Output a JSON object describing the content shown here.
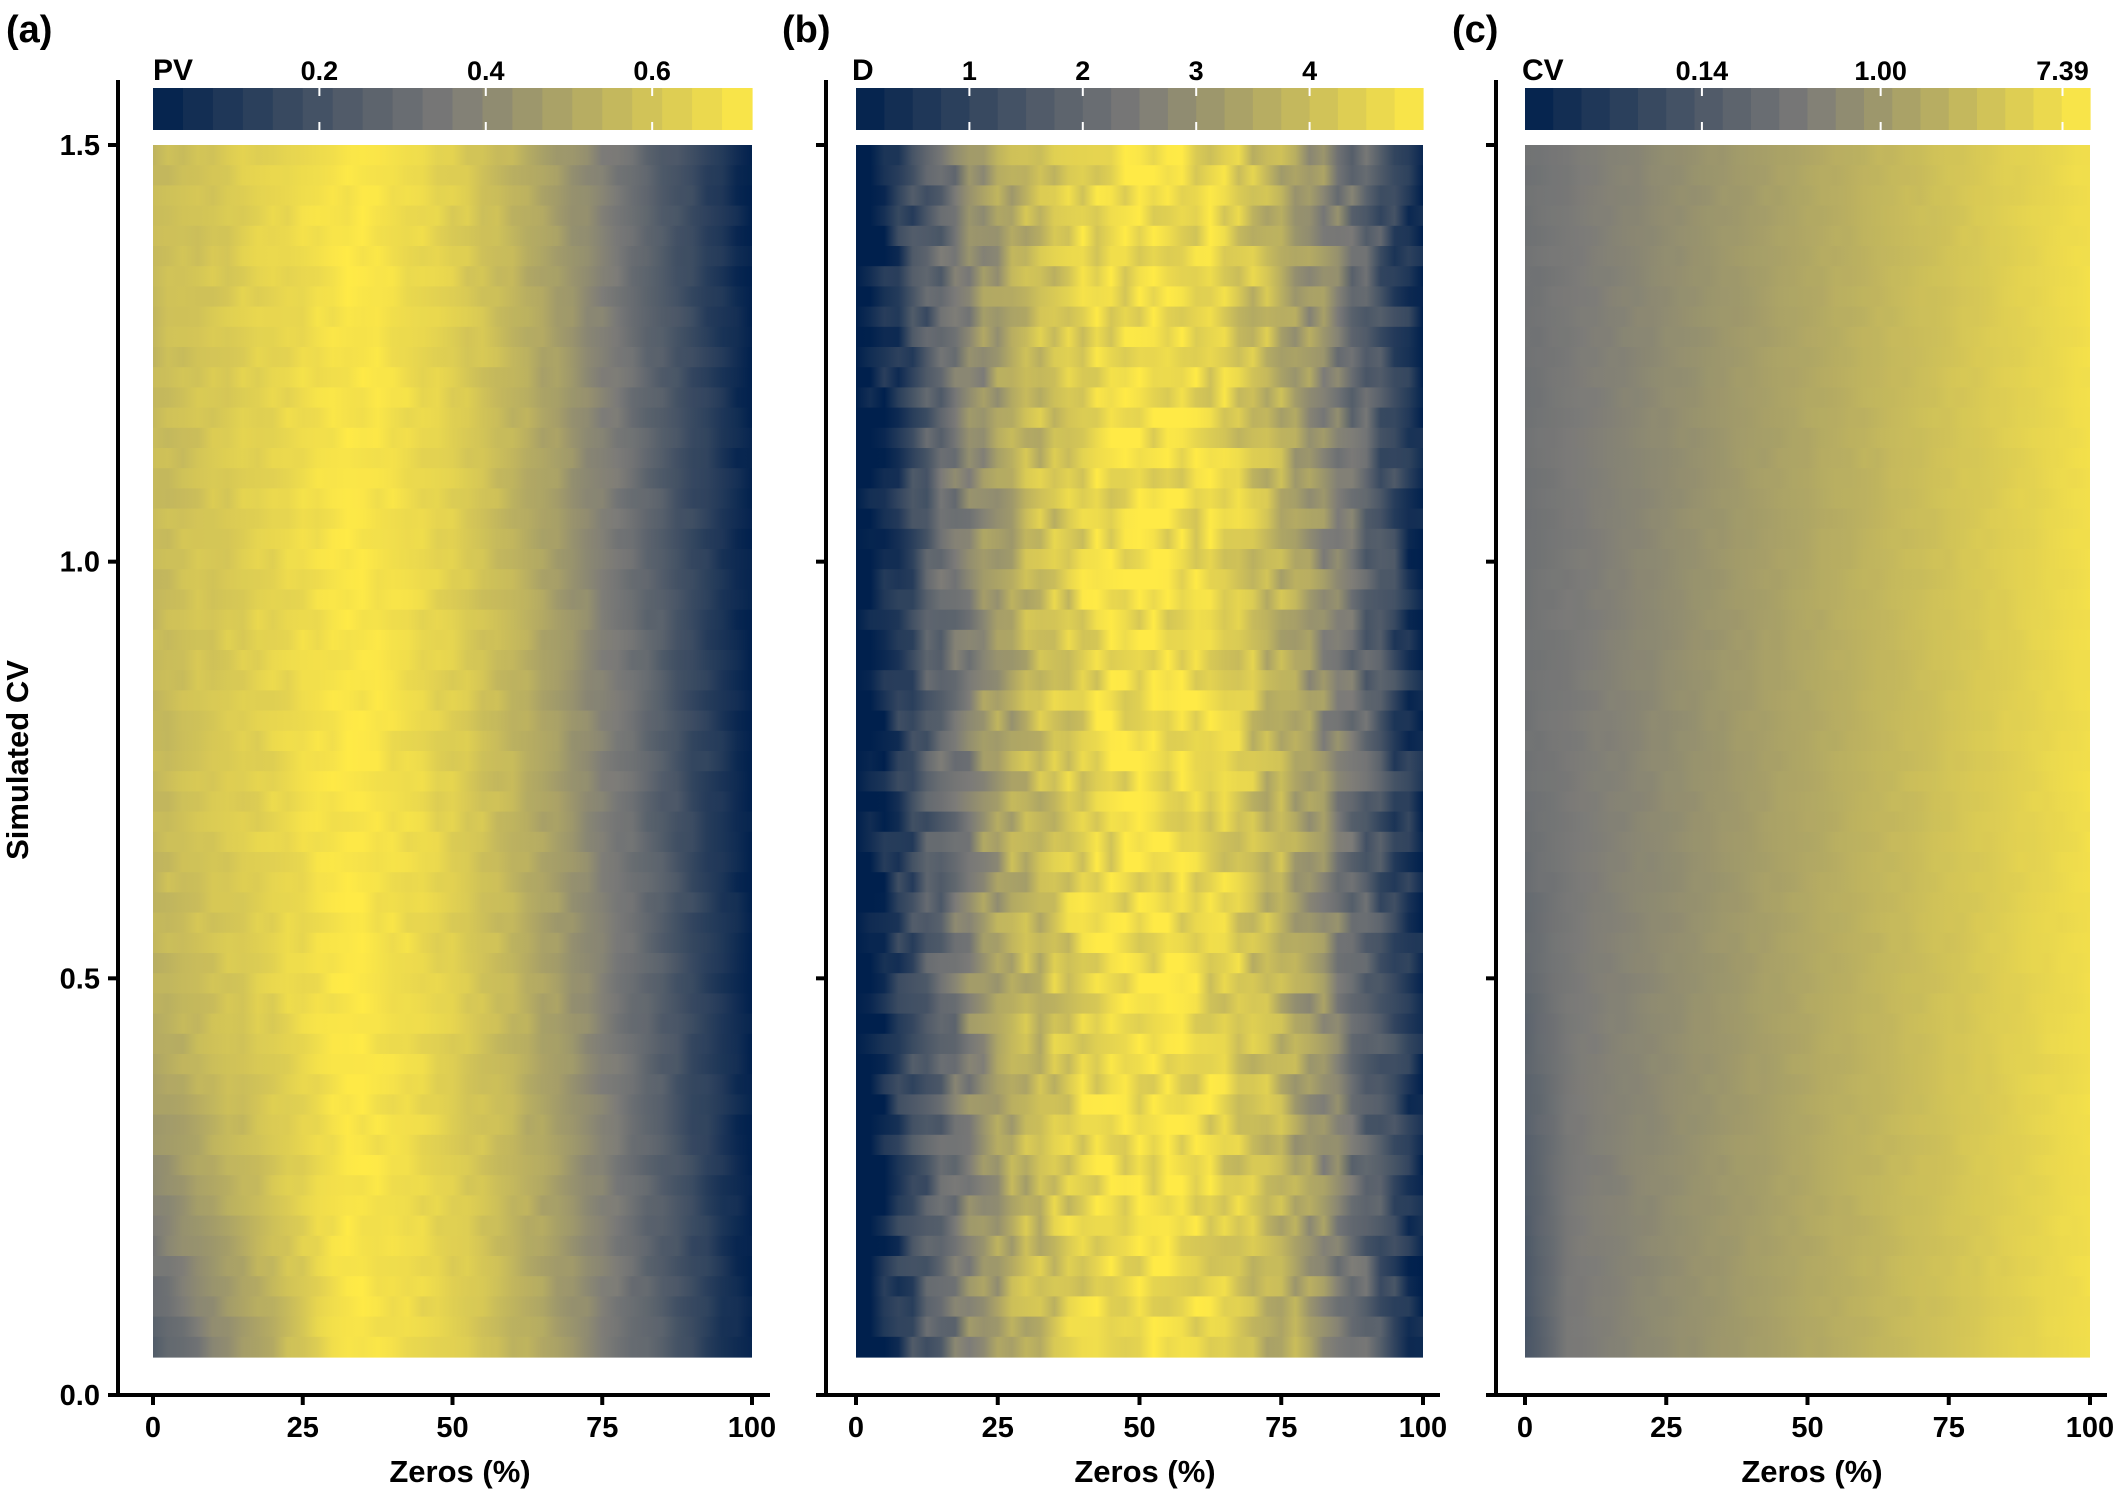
{
  "colors": {
    "low": "#00204d",
    "mid": "#7c7b78",
    "high": "#ffea46",
    "axis": "#000000",
    "tick_line": "#ffffff"
  },
  "shared_axes": {
    "ylabel": "Simulated CV",
    "xlabel": "Zeros (%)",
    "x_ticks": [
      "0",
      "25",
      "50",
      "75",
      "100"
    ],
    "y_ticks": [
      "0.0",
      "0.5",
      "1.0",
      "1.5"
    ]
  },
  "chart_data": [
    {
      "type": "heatmap",
      "panel_label": "(a)",
      "legend_title": "PV",
      "colorbar_ticks": [
        {
          "label": "0.2",
          "value": 0.2
        },
        {
          "label": "0.4",
          "value": 0.4
        },
        {
          "label": "0.6",
          "value": 0.6
        }
      ],
      "colorbar_range": [
        0.0,
        0.72
      ],
      "colorbar_scale": "linear",
      "x": {
        "label": "Zeros (%)",
        "range": [
          0,
          100
        ],
        "ticks": [
          0,
          25,
          50,
          75,
          100
        ],
        "tick_labels": [
          "0",
          "25",
          "50",
          "75",
          "100"
        ]
      },
      "y": {
        "label": "Simulated CV",
        "range": [
          0.0,
          1.5
        ],
        "data_range": [
          0.05,
          1.5
        ],
        "ticks": [
          0.0,
          0.5,
          1.0,
          1.5
        ],
        "tick_labels": [
          "0.0",
          "0.5",
          "1.0",
          "1.5"
        ]
      },
      "grid": false,
      "legend": "top colorbar",
      "pattern": "PV highest (yellow) at roughly 20-40% zeros, decreasing to dark blue near 100% zeros; darker at 0% zeros for low simulated CV"
    },
    {
      "type": "heatmap",
      "panel_label": "(b)",
      "legend_title": "D",
      "colorbar_ticks": [
        {
          "label": "1",
          "value": 1
        },
        {
          "label": "2",
          "value": 2
        },
        {
          "label": "3",
          "value": 3
        },
        {
          "label": "4",
          "value": 4
        }
      ],
      "colorbar_range": [
        0.0,
        5.0
      ],
      "colorbar_scale": "linear",
      "x": {
        "label": "Zeros (%)",
        "range": [
          0,
          100
        ],
        "ticks": [
          0,
          25,
          50,
          75,
          100
        ],
        "tick_labels": [
          "0",
          "25",
          "50",
          "75",
          "100"
        ]
      },
      "y": {
        "range": [
          0.0,
          1.5
        ],
        "data_range": [
          0.05,
          1.5
        ],
        "ticks": [
          0.0,
          0.5,
          1.0,
          1.5
        ]
      },
      "grid": false,
      "legend": "top colorbar",
      "pattern": "D is noisy, highest (yellow) around 40-60% zeros, dark blue near 0% and 100% zeros"
    },
    {
      "type": "heatmap",
      "panel_label": "(c)",
      "legend_title": "CV",
      "colorbar_ticks": [
        {
          "label": "0.14",
          "value": 0.14
        },
        {
          "label": "1.00",
          "value": 1.0
        },
        {
          "label": "7.39",
          "value": 7.39
        }
      ],
      "colorbar_range": [
        0.02,
        10.0
      ],
      "colorbar_scale": "log",
      "x": {
        "label": "Zeros (%)",
        "range": [
          0,
          100
        ],
        "ticks": [
          0,
          25,
          50,
          75,
          100
        ],
        "tick_labels": [
          "0",
          "25",
          "50",
          "75",
          "100"
        ]
      },
      "y": {
        "range": [
          0.0,
          1.5
        ],
        "data_range": [
          0.05,
          1.5
        ],
        "ticks": [
          0.0,
          0.5,
          1.0,
          1.5
        ]
      },
      "grid": false,
      "legend": "top colorbar",
      "pattern": "CV increases smoothly with % zeros, from grey-blue near 0% to bright yellow near 100%"
    }
  ]
}
